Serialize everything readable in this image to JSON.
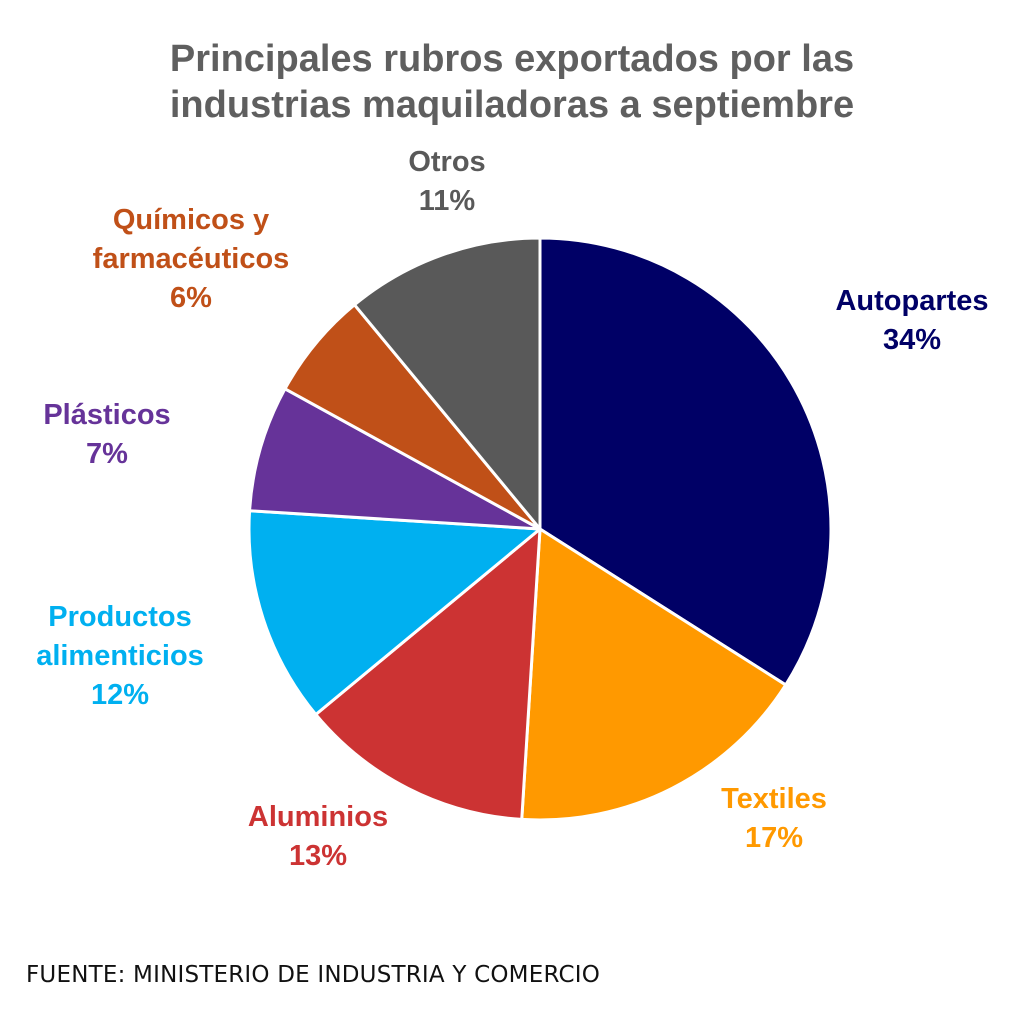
{
  "chart_data": {
    "type": "pie",
    "title_lines": [
      "Principales rubros exportados por las",
      "industrias maquiladoras a septiembre"
    ],
    "unit": "%",
    "slices": [
      {
        "label_lines": [
          "Autopartes"
        ],
        "value": 34,
        "value_text": "34%",
        "color": "#000066"
      },
      {
        "label_lines": [
          "Textiles"
        ],
        "value": 17,
        "value_text": "17%",
        "color": "#ff9900"
      },
      {
        "label_lines": [
          "Aluminios"
        ],
        "value": 13,
        "value_text": "13%",
        "color": "#cc3333"
      },
      {
        "label_lines": [
          "Productos",
          "alimenticios"
        ],
        "value": 12,
        "value_text": "12%",
        "color": "#00b0f0"
      },
      {
        "label_lines": [
          "Plásticos"
        ],
        "value": 7,
        "value_text": "7%",
        "color": "#663399"
      },
      {
        "label_lines": [
          "Químicos y",
          "farmacéuticos"
        ],
        "value": 6,
        "value_text": "6%",
        "color": "#c05018"
      },
      {
        "label_lines": [
          "Otros"
        ],
        "value": 11,
        "value_text": "11%",
        "color": "#595959"
      }
    ],
    "legend": "none"
  },
  "source": "FUENTE: MINISTERIO DE INDUSTRIA Y COMERCIO"
}
